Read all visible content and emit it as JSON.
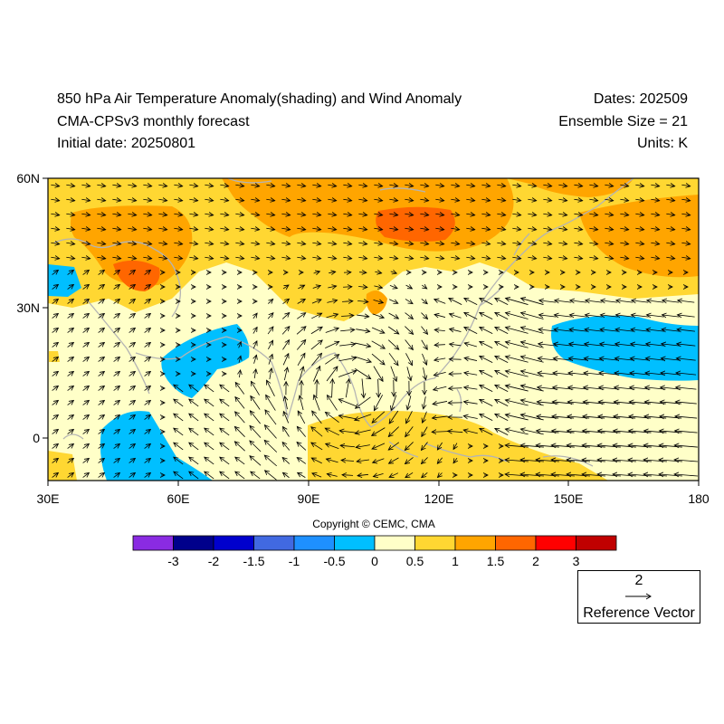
{
  "header": {
    "title_line1": "850 hPa Air Temperature Anomaly(shading) and Wind Anomaly",
    "title_line2": "CMA-CPSv3 monthly forecast",
    "title_line3": "Initial date: 20250801",
    "dates": "Dates: 202509",
    "ensemble": "Ensemble Size = 21",
    "units": "Units: K"
  },
  "map": {
    "lon_range": [
      30,
      180
    ],
    "lat_range": [
      -10,
      60
    ],
    "lon_ticks": [
      "30E",
      "60E",
      "90E",
      "120E",
      "150E",
      "180"
    ],
    "lat_ticks": [
      "60N",
      "30N",
      "0"
    ]
  },
  "copyright": "Copyright © CEMC, CMA",
  "colorbar": {
    "labels": [
      "-3",
      "-2",
      "-1.5",
      "-1",
      "-0.5",
      "0",
      "0.5",
      "1",
      "1.5",
      "2",
      "3"
    ],
    "colors": [
      "#8a2be2",
      "#00008b",
      "#0000cd",
      "#4169e1",
      "#1e90ff",
      "#00bfff",
      "#ffffc8",
      "#ffd732",
      "#ffa500",
      "#ff6600",
      "#ff0000",
      "#c00000"
    ]
  },
  "reference_vector": {
    "magnitude": "2",
    "label": "Reference Vector"
  }
}
